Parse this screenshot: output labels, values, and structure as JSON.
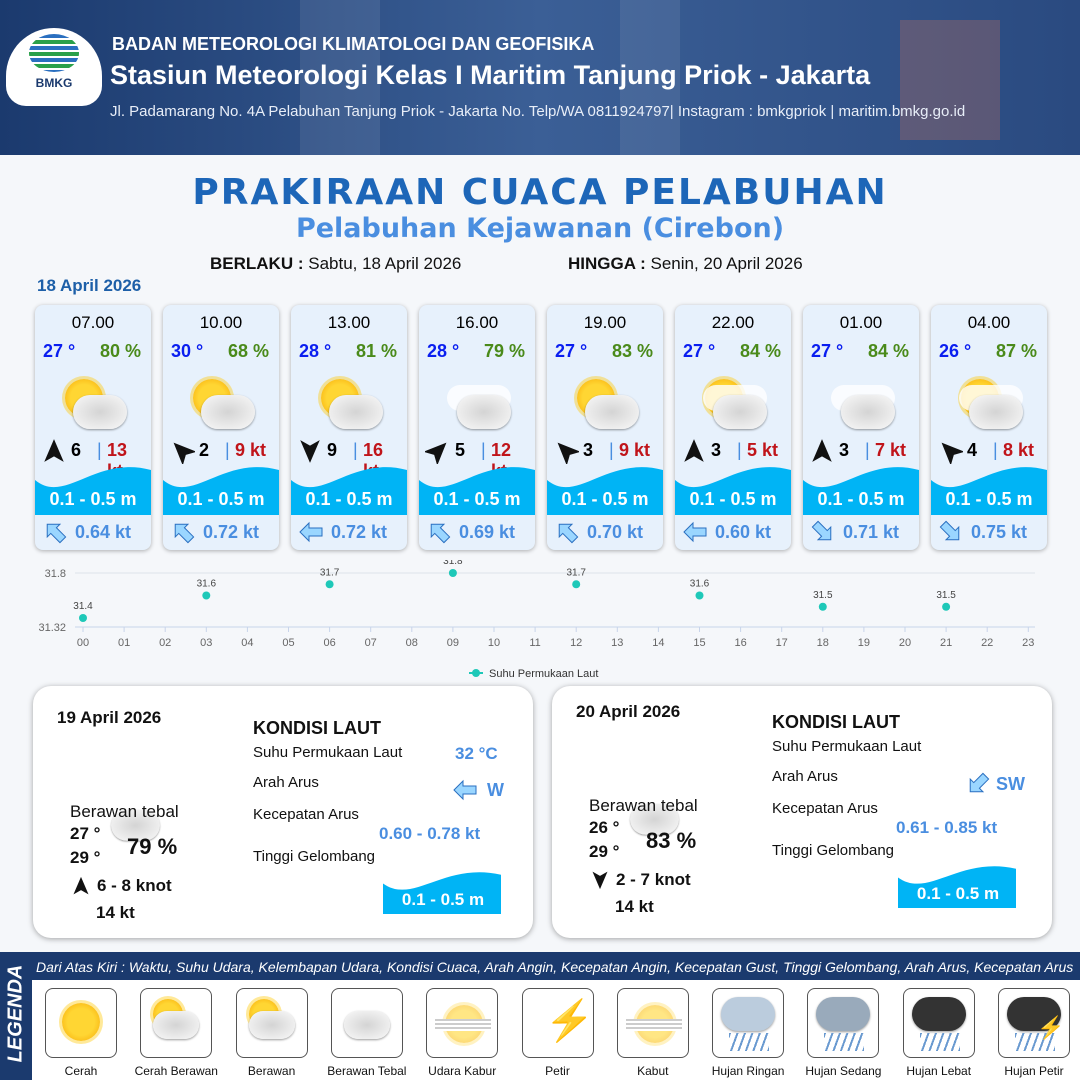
{
  "header": {
    "org": "BADAN METEOROLOGI KLIMATOLOGI DAN GEOFISIKA",
    "station": "Stasiun Meteorologi Kelas I Maritim Tanjung Priok - Jakarta",
    "address": "Jl. Padamarang No. 4A Pelabuhan Tanjung Priok - Jakarta No. Telp/WA 0811924797| Instagram : bmkgpriok | maritim.bmkg.go.id",
    "logo_text": "BMKG"
  },
  "title": "PRAKIRAAN CUACA PELABUHAN",
  "subtitle": "Pelabuhan Kejawanan (Cirebon)",
  "validity": {
    "from_label": "BERLAKU :",
    "from": "Sabtu, 18 April 2026",
    "to_label": "HINGGA :",
    "to": "Senin, 20 April 2026"
  },
  "day1_date": "18 April 2026",
  "cards": [
    {
      "time": "07.00",
      "temp": "27 °",
      "hum": "80 %",
      "weather": "Cerah Berawan",
      "wind_dir": "N",
      "wind": "6",
      "gust": "13 kt",
      "wave": "0.1 - 0.5 m",
      "cur_dir": "NW",
      "cur": "0.64 kt"
    },
    {
      "time": "10.00",
      "temp": "30 °",
      "hum": "68 %",
      "weather": "Cerah Berawan",
      "wind_dir": "NW",
      "wind": "2",
      "gust": "9 kt",
      "wave": "0.1 - 0.5 m",
      "cur_dir": "NW",
      "cur": "0.72 kt"
    },
    {
      "time": "13.00",
      "temp": "28 °",
      "hum": "81 %",
      "weather": "Cerah Berawan",
      "wind_dir": "S",
      "wind": "9",
      "gust": "16 kt",
      "wave": "0.1 - 0.5 m",
      "cur_dir": "W",
      "cur": "0.72 kt"
    },
    {
      "time": "16.00",
      "temp": "28 °",
      "hum": "79 %",
      "weather": "Berawan Tebal",
      "wind_dir": "NE",
      "wind": "5",
      "gust": "12 kt",
      "wave": "0.1 - 0.5 m",
      "cur_dir": "NW",
      "cur": "0.69 kt"
    },
    {
      "time": "19.00",
      "temp": "27 °",
      "hum": "83 %",
      "weather": "Cerah Berawan",
      "wind_dir": "NW",
      "wind": "3",
      "gust": "9 kt",
      "wave": "0.1 - 0.5 m",
      "cur_dir": "NW",
      "cur": "0.70 kt"
    },
    {
      "time": "22.00",
      "temp": "27 °",
      "hum": "84 %",
      "weather": "Berawan",
      "wind_dir": "N",
      "wind": "3",
      "gust": "5 kt",
      "wave": "0.1 - 0.5 m",
      "cur_dir": "W",
      "cur": "0.60 kt"
    },
    {
      "time": "01.00",
      "temp": "27 °",
      "hum": "84 %",
      "weather": "Berawan Tebal",
      "wind_dir": "N",
      "wind": "3",
      "gust": "7 kt",
      "wave": "0.1 - 0.5 m",
      "cur_dir": "SE",
      "cur": "0.71 kt"
    },
    {
      "time": "04.00",
      "temp": "26 °",
      "hum": "87 %",
      "weather": "Berawan",
      "wind_dir": "NW",
      "wind": "4",
      "gust": "8 kt",
      "wave": "0.1 - 0.5 m",
      "cur_dir": "SE",
      "cur": "0.75 kt"
    }
  ],
  "chart_data": {
    "type": "scatter",
    "legend": "Suhu Permukaan Laut",
    "legend_position": "bottom",
    "color": "#1ec8b8",
    "ylim": [
      31.32,
      31.8
    ],
    "yticks": [
      "31.8",
      "31.32"
    ],
    "xticks": [
      "00",
      "01",
      "02",
      "03",
      "04",
      "05",
      "06",
      "07",
      "08",
      "09",
      "10",
      "11",
      "12",
      "13",
      "14",
      "15",
      "16",
      "17",
      "18",
      "19",
      "20",
      "21",
      "22",
      "23"
    ],
    "x": [
      "00",
      "03",
      "06",
      "09",
      "12",
      "15",
      "18",
      "21"
    ],
    "values": [
      31.4,
      31.6,
      31.7,
      31.8,
      31.7,
      31.6,
      31.5,
      31.5
    ],
    "labels": [
      "31.4",
      "31.6",
      "31.7",
      "31.8",
      "31.7",
      "31.6",
      "31.5",
      "31.5"
    ]
  },
  "days": [
    {
      "date": "19 April 2026",
      "weather": "Berawan tebal",
      "tmin": "27 °",
      "tmax": "29 °",
      "hum": "79 %",
      "wind_dir": "N",
      "wind": "6 - 8 knot",
      "gust": "14 kt",
      "kondisi": "KONDISI LAUT",
      "sst_label": "Suhu Permukaan Laut",
      "sst": "32 °C",
      "arus_label": "Arah Arus",
      "arus_dir": "W",
      "kec_label": "Kecepatan Arus",
      "kec": "0.60  - 0.78 kt",
      "tg_label": "Tinggi Gelombang",
      "wave": "0.1 - 0.5 m"
    },
    {
      "date": "20 April 2026",
      "weather": "Berawan tebal",
      "tmin": "26 °",
      "tmax": "29 °",
      "hum": "83 %",
      "wind_dir": "S",
      "wind": "2  - 7 knot",
      "gust": "14 kt",
      "kondisi": "KONDISI LAUT",
      "sst_label": "Suhu Permukaan Laut",
      "sst": "",
      "arus_label": "Arah Arus",
      "arus_dir": "SW",
      "kec_label": "Kecepatan Arus",
      "kec": "0.61  - 0.85 kt",
      "tg_label": "Tinggi Gelombang",
      "wave": "0.1 - 0.5 m"
    }
  ],
  "legend": {
    "title": "LEGENDA",
    "description": "Dari Atas Kiri : Waktu, Suhu Udara, Kelembapan Udara, Kondisi Cuaca, Arah Angin, Kecepatan Angin, Kecepatan Gust, Tinggi Gelombang, Arah Arus, Kecepatan Arus",
    "items": [
      "Cerah",
      "Cerah Berawan",
      "Berawan",
      "Berawan Tebal",
      "Udara Kabur",
      "Petir",
      "Kabut",
      "Hujan Ringan",
      "Hujan Sedang",
      "Hujan Lebat",
      "Hujan Petir"
    ]
  }
}
